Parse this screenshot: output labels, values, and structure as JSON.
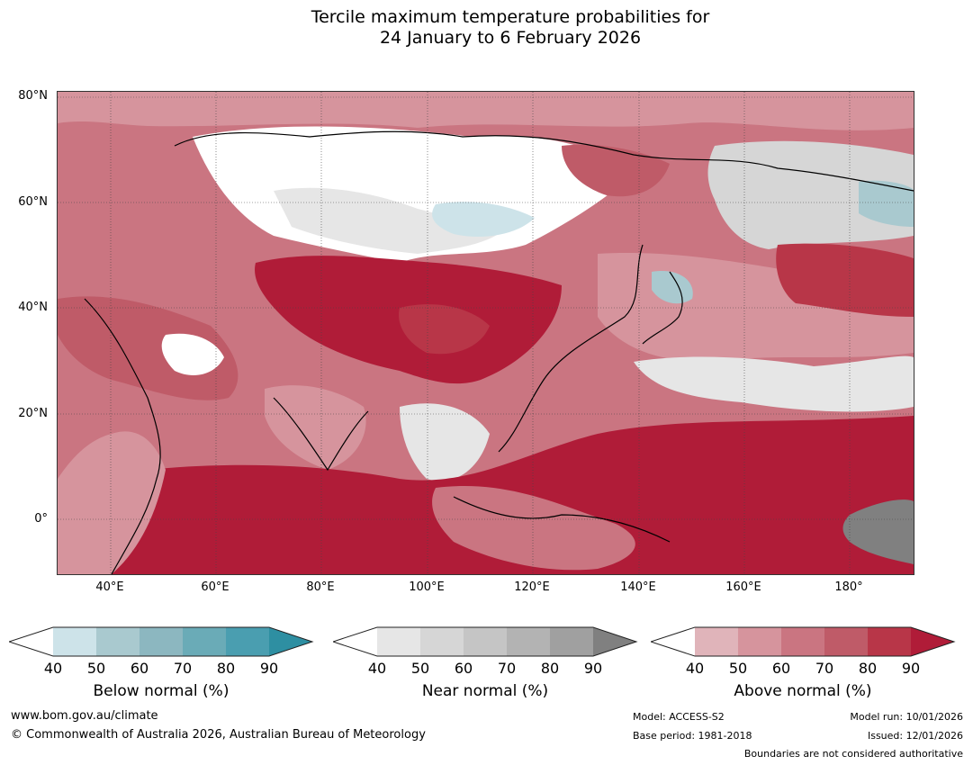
{
  "title": {
    "line1": "Tercile maximum temperature probabilities for",
    "line2": "24 January to 6 February 2026"
  },
  "map": {
    "latitude_labels": [
      "80°N",
      "60°N",
      "40°N",
      "20°N",
      "0°"
    ],
    "longitude_labels": [
      "40°E",
      "60°E",
      "80°E",
      "100°E",
      "120°E",
      "140°E",
      "160°E",
      "180°"
    ]
  },
  "legend": {
    "below": {
      "label": "Below normal (%)",
      "ticks": [
        "40",
        "50",
        "60",
        "70",
        "80",
        "90"
      ],
      "colors": [
        "#ffffff",
        "#cde3e9",
        "#a9c9cf",
        "#8cb7c0",
        "#6aabb7",
        "#4a9eb0",
        "#2e8fa2"
      ]
    },
    "near": {
      "label": "Near normal (%)",
      "ticks": [
        "40",
        "50",
        "60",
        "70",
        "80",
        "90"
      ],
      "colors": [
        "#ffffff",
        "#e6e6e6",
        "#d6d6d6",
        "#c5c5c5",
        "#b3b3b3",
        "#a0a0a0",
        "#808080"
      ]
    },
    "above": {
      "label": "Above normal (%)",
      "ticks": [
        "40",
        "50",
        "60",
        "70",
        "80",
        "90"
      ],
      "colors": [
        "#ffffff",
        "#e0b4ba",
        "#d6949d",
        "#ca7581",
        "#bf5b68",
        "#b83648",
        "#b01c38"
      ]
    }
  },
  "footer": {
    "url": "www.bom.gov.au/climate",
    "copyright": "© Commonwealth of Australia 2026, Australian Bureau of Meteorology",
    "model": "Model: ACCESS-S2",
    "base_period": "Base period: 1981-2018",
    "model_run": "Model run: 10/01/2026",
    "issued": "Issued: 12/01/2026",
    "disclaimer": "Boundaries are not considered authoritative"
  }
}
